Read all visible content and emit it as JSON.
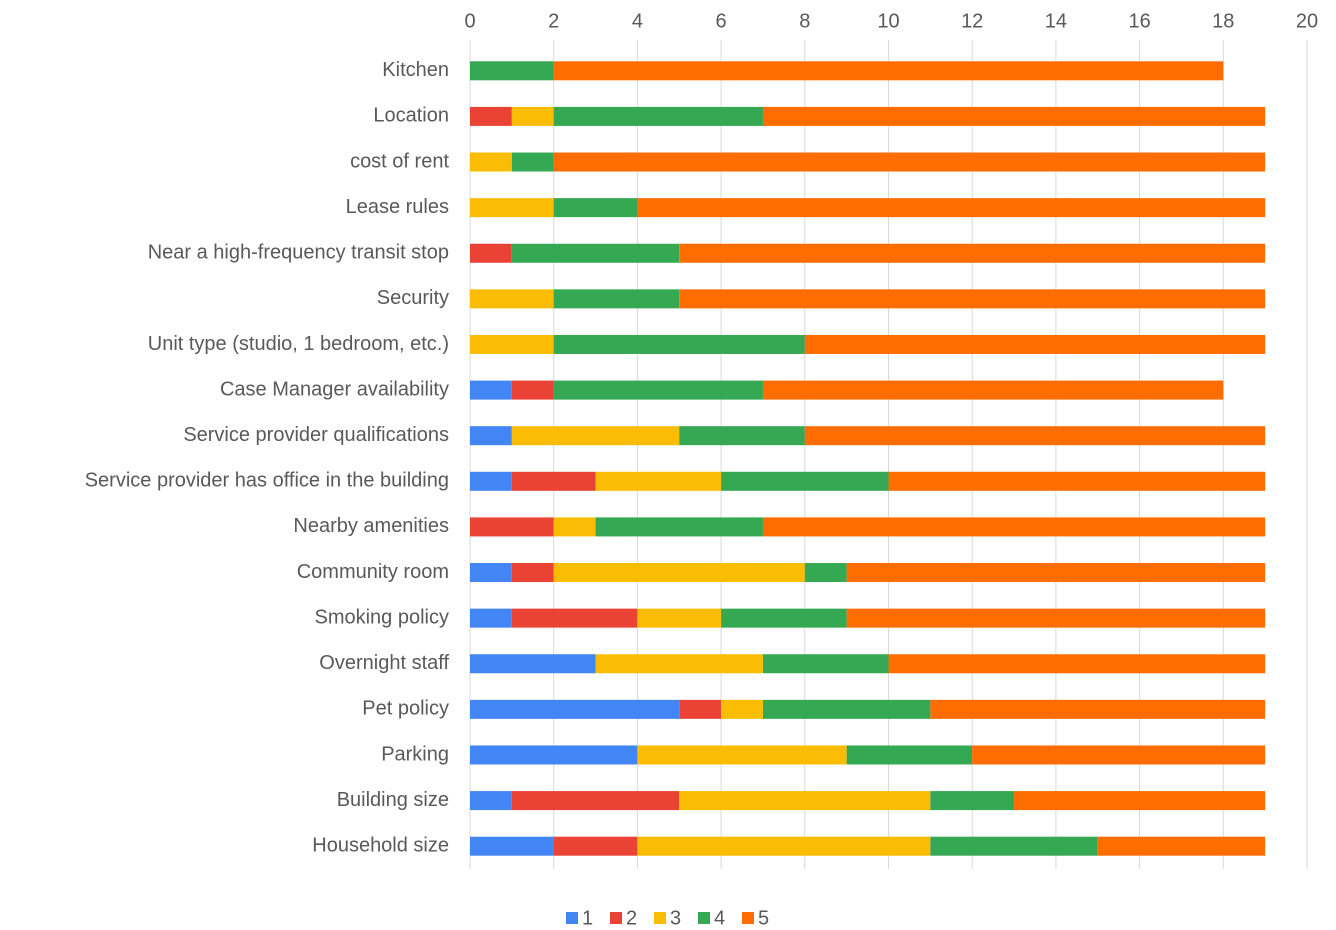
{
  "chart_data": {
    "type": "stacked-bar-horizontal",
    "categories": [
      "Kitchen",
      "Location",
      "cost of rent",
      "Lease rules",
      "Near a high-frequency transit stop",
      "Security",
      "Unit type (studio, 1 bedroom, etc.)",
      "Case Manager availability",
      "Service provider qualifications",
      "Service provider has office in the building",
      "Nearby amenities",
      "Community room",
      "Smoking policy",
      "Overnight staff",
      "Pet policy",
      "Parking",
      "Building size",
      "Household size"
    ],
    "series": [
      {
        "name": "1",
        "color": "#4285f4",
        "values": [
          0,
          0,
          0,
          0,
          0,
          0,
          0,
          1,
          1,
          1,
          0,
          1,
          1,
          3,
          5,
          4,
          1,
          2
        ]
      },
      {
        "name": "2",
        "color": "#ea4335",
        "values": [
          0,
          1,
          0,
          0,
          1,
          0,
          0,
          1,
          0,
          2,
          2,
          1,
          3,
          0,
          1,
          0,
          4,
          2
        ]
      },
      {
        "name": "3",
        "color": "#fbbc04",
        "values": [
          0,
          1,
          1,
          2,
          0,
          2,
          2,
          0,
          4,
          3,
          1,
          6,
          2,
          4,
          1,
          5,
          6,
          7
        ]
      },
      {
        "name": "4",
        "color": "#34a853",
        "values": [
          2,
          5,
          1,
          2,
          4,
          3,
          6,
          5,
          3,
          4,
          4,
          1,
          3,
          3,
          4,
          3,
          2,
          4
        ]
      },
      {
        "name": "5",
        "color": "#ff6d01",
        "values": [
          16,
          12,
          17,
          15,
          14,
          14,
          11,
          11,
          11,
          9,
          12,
          10,
          10,
          9,
          8,
          7,
          6,
          4
        ]
      }
    ],
    "xlim": [
      0,
      20
    ],
    "xticks": [
      0,
      2,
      4,
      6,
      8,
      10,
      12,
      14,
      16,
      18,
      20
    ],
    "grid": true,
    "legend": "bottom"
  }
}
